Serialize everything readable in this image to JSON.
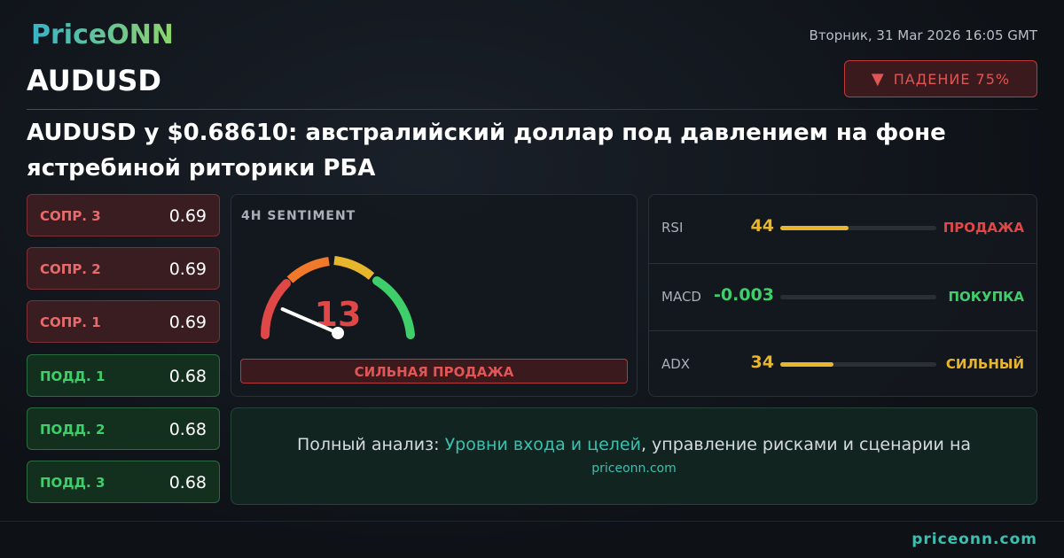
{
  "header": {
    "logo": "PriceONN",
    "date": "Вторник, 31 Mar 2026 16:05 GMT",
    "symbol": "AUDUSD",
    "badge": "ПАДЕНИЕ 75%",
    "headline": "AUDUSD у $0.68610: австралийский доллар под давлением на фоне ястребиной риторики РБА"
  },
  "levels": [
    {
      "label": "СОПР. 3",
      "value": 0.69,
      "kind": "resistance"
    },
    {
      "label": "СОПР. 2",
      "value": 0.69,
      "kind": "resistance"
    },
    {
      "label": "СОПР. 1",
      "value": 0.69,
      "kind": "resistance"
    },
    {
      "label": "ПОДД. 1",
      "value": 0.68,
      "kind": "support"
    },
    {
      "label": "ПОДД. 2",
      "value": 0.68,
      "kind": "support"
    },
    {
      "label": "ПОДД. 3",
      "value": 0.68,
      "kind": "support"
    }
  ],
  "gauge": {
    "title": "4H SENTIMENT",
    "value": 13,
    "label": "СИЛЬНАЯ ПРОДАЖА"
  },
  "indicators": [
    {
      "name": "RSI",
      "value": 44,
      "signal": "ПРОДАЖА",
      "color": "#e8b62c",
      "signal_color": "#e04848"
    },
    {
      "name": "MACD",
      "value": -0.003,
      "signal": "ПОКУПКА",
      "color": "#3ecf6a",
      "signal_color": "#3ecf6a"
    },
    {
      "name": "ADX",
      "value": 34,
      "signal": "СИЛЬНЫЙ",
      "color": "#e8b62c",
      "signal_color": "#e8b62c"
    }
  ],
  "cta": {
    "prefix": "Полный анализ: ",
    "link": "Уровни входа и целей",
    "suffix": ", управление рисками и сценарии на",
    "site": "priceonn.com"
  },
  "footer": {
    "site": "priceonn.com"
  }
}
